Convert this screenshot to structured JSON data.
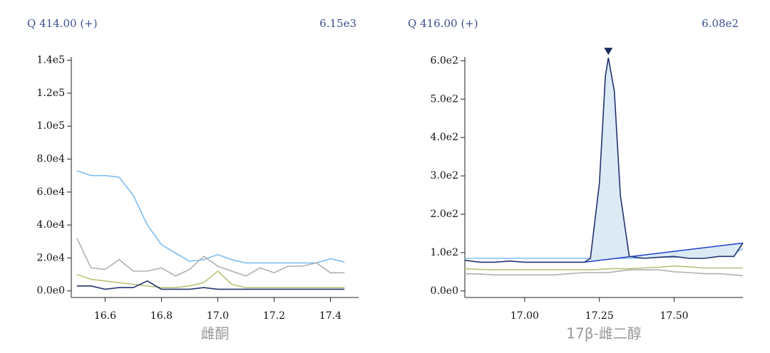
{
  "chart_data": [
    {
      "type": "line",
      "title": "Q 414.00 (+)",
      "max_label": "6.15e3",
      "xlabel": "雌酮",
      "x": [
        16.5,
        16.55,
        16.6,
        16.65,
        16.7,
        16.75,
        16.8,
        16.85,
        16.9,
        16.95,
        17.0,
        17.05,
        17.1,
        17.15,
        17.2,
        17.25,
        17.3,
        17.35,
        17.4,
        17.45
      ],
      "series": [
        {
          "color": "#7fbdf0",
          "values": [
            73000,
            70000,
            70000,
            69000,
            58000,
            40000,
            28000,
            23000,
            18000,
            19000,
            22000,
            19000,
            17000,
            17000,
            17000,
            17000,
            17000,
            17000,
            19500,
            17500
          ]
        },
        {
          "color": "#b0b0b0",
          "values": [
            32000,
            14000,
            13000,
            19000,
            12000,
            12000,
            14000,
            9000,
            13000,
            21000,
            15000,
            12000,
            9000,
            14000,
            11000,
            15000,
            15000,
            17000,
            11000,
            11000
          ]
        },
        {
          "color": "#b8c27a",
          "values": [
            10000,
            7000,
            6000,
            5000,
            4000,
            3000,
            2000,
            2000,
            3000,
            5000,
            12000,
            4000,
            2000,
            2000,
            2000,
            2000,
            2000,
            2000,
            2000,
            2000
          ]
        },
        {
          "color": "#24336e",
          "values": [
            3000,
            3000,
            1000,
            2000,
            2000,
            6000,
            1000,
            1000,
            1000,
            2000,
            1000,
            1000,
            1000,
            1000,
            1000,
            1000,
            1000,
            1000,
            1000,
            1000
          ]
        }
      ],
      "xlim": [
        16.48,
        17.5
      ],
      "ylim": [
        -4000,
        142000
      ],
      "xticks": [
        16.6,
        16.8,
        {
          "value": 17.0,
          "label": "17.0"
        },
        17.2,
        17.4
      ],
      "yticks": [
        {
          "value": 0,
          "label": "0.0e0"
        },
        {
          "value": 20000,
          "label": "2.0e4"
        },
        {
          "value": 40000,
          "label": "4.0e4"
        },
        {
          "value": 60000,
          "label": "6.0e4"
        },
        {
          "value": 80000,
          "label": "8.0e4"
        },
        {
          "value": 100000,
          "label": "1.0e5"
        },
        {
          "value": 120000,
          "label": "1.2e5"
        },
        {
          "value": 140000,
          "label": "1.4e5"
        }
      ]
    },
    {
      "type": "line",
      "title": "Q 416.00 (+)",
      "max_label": "6.08e2",
      "xlabel": "17β-雌二醇",
      "x": [
        16.8,
        16.85,
        16.9,
        16.95,
        17.0,
        17.05,
        17.1,
        17.15,
        17.2,
        17.22,
        17.25,
        17.27,
        17.28,
        17.3,
        17.32,
        17.35,
        17.4,
        17.45,
        17.5,
        17.55,
        17.6,
        17.65,
        17.7,
        17.73
      ],
      "series": [
        {
          "color": "#7fbdf0",
          "values": [
            85,
            85,
            85,
            85,
            85,
            85,
            85,
            85,
            85,
            85,
            85,
            85,
            85,
            85,
            85,
            85,
            86,
            88,
            88,
            90,
            95,
            96,
            98,
            110
          ]
        },
        {
          "color": "#b0b0b0",
          "values": [
            45,
            44,
            42,
            42,
            42,
            42,
            42,
            45,
            48,
            48,
            48,
            48,
            48,
            50,
            52,
            55,
            55,
            55,
            50,
            48,
            45,
            45,
            42,
            40
          ]
        },
        {
          "color": "#b8c27a",
          "values": [
            58,
            56,
            55,
            55,
            55,
            55,
            55,
            55,
            55,
            55,
            56,
            57,
            58,
            58,
            58,
            58,
            60,
            62,
            65,
            63,
            60,
            60,
            60,
            60
          ]
        },
        {
          "color": "#24336e",
          "values": [
            80,
            75,
            75,
            78,
            75,
            75,
            75,
            75,
            75,
            85,
            280,
            560,
            608,
            520,
            250,
            90,
            85,
            88,
            90,
            85,
            85,
            90,
            90,
            125
          ]
        }
      ],
      "xlim": [
        16.8,
        17.73
      ],
      "ylim": [
        -17,
        610
      ],
      "xticks": [
        {
          "value": 17.0,
          "label": "17.00"
        },
        17.25,
        {
          "value": 17.5,
          "label": "17.50"
        }
      ],
      "yticks": [
        {
          "value": 0,
          "label": "0.0e0"
        },
        {
          "value": 100,
          "label": "1.0e2"
        },
        {
          "value": 200,
          "label": "2.0e2"
        },
        {
          "value": 300,
          "label": "3.0e2"
        },
        {
          "value": 400,
          "label": "4.0e2"
        },
        {
          "value": 500,
          "label": "5.0e2"
        },
        {
          "value": 600,
          "label": "6.0e2"
        }
      ]
    }
  ]
}
